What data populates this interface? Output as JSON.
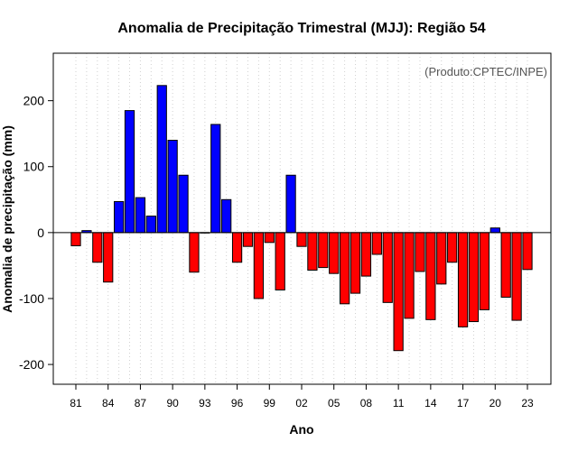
{
  "chart_data": {
    "type": "bar",
    "title": "Anomalia de Precipitação Trimestral (MJJ): Região 54",
    "xlabel": "Ano",
    "ylabel": "Anomalia de precipitação (mm)",
    "annotation": "(Produto:CPTEC/INPE)",
    "ylim": [
      -230,
      272
    ],
    "yticks": [
      -200,
      -100,
      0,
      100,
      200
    ],
    "grid": "vertical dotted, one per year",
    "positive_color": "#0000ff",
    "negative_color": "#ff0000",
    "x_tick_labels": [
      {
        "year": 1981,
        "label": "81"
      },
      {
        "year": 1984,
        "label": "84"
      },
      {
        "year": 1987,
        "label": "87"
      },
      {
        "year": 1990,
        "label": "90"
      },
      {
        "year": 1993,
        "label": "93"
      },
      {
        "year": 1996,
        "label": "96"
      },
      {
        "year": 1999,
        "label": "99"
      },
      {
        "year": 2002,
        "label": "02"
      },
      {
        "year": 2005,
        "label": "05"
      },
      {
        "year": 2008,
        "label": "08"
      },
      {
        "year": 2011,
        "label": "11"
      },
      {
        "year": 2014,
        "label": "14"
      },
      {
        "year": 2017,
        "label": "17"
      },
      {
        "year": 2020,
        "label": "20"
      },
      {
        "year": 2023,
        "label": "23"
      }
    ],
    "years": [
      1981,
      1982,
      1983,
      1984,
      1985,
      1986,
      1987,
      1988,
      1989,
      1990,
      1991,
      1992,
      1993,
      1994,
      1995,
      1996,
      1997,
      1998,
      1999,
      2000,
      2001,
      2002,
      2003,
      2004,
      2005,
      2006,
      2007,
      2008,
      2009,
      2010,
      2011,
      2012,
      2013,
      2014,
      2015,
      2016,
      2017,
      2018,
      2019,
      2020,
      2021,
      2022,
      2023
    ],
    "values": [
      -20,
      3,
      -45,
      -75,
      47,
      185,
      53,
      25,
      223,
      140,
      87,
      -60,
      0,
      164,
      50,
      -45,
      -21,
      -100,
      -15,
      -87,
      87,
      -21,
      -57,
      -53,
      -62,
      -108,
      -92,
      -66,
      -33,
      -106,
      -179,
      -130,
      -59,
      -132,
      -78,
      -45,
      -143,
      -135,
      -117,
      7,
      -98,
      -133,
      -56
    ]
  }
}
